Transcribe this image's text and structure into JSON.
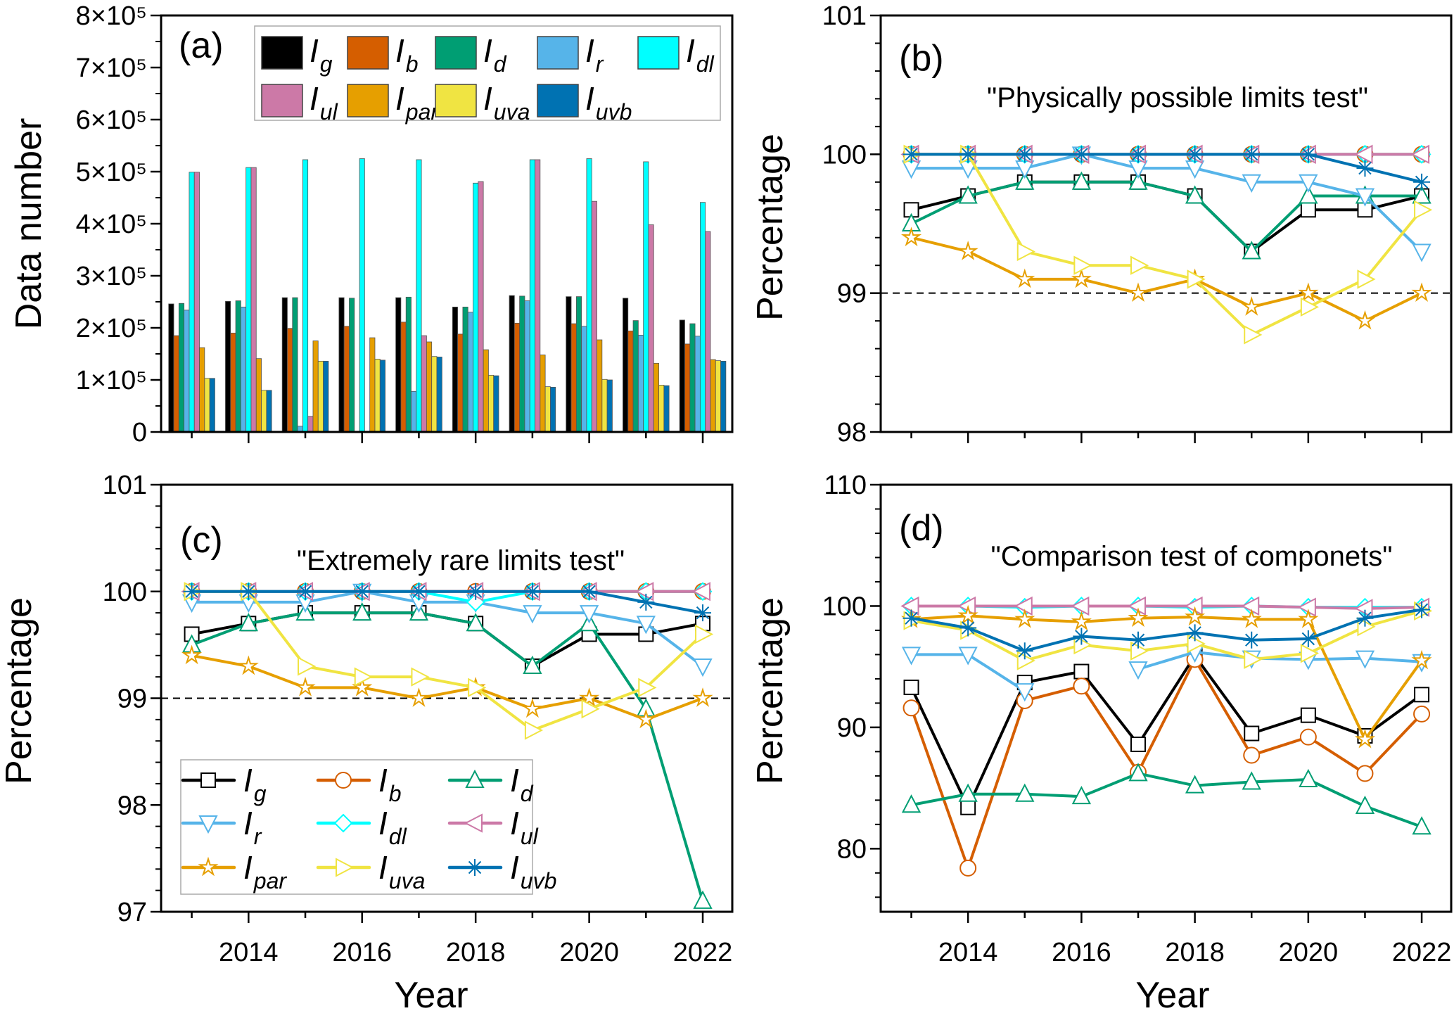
{
  "series_defs": [
    {
      "key": "Ig",
      "main": "I",
      "sub": "g",
      "color": "#000000",
      "marker": "square"
    },
    {
      "key": "Ib",
      "main": "I",
      "sub": "b",
      "color": "#D55E00",
      "marker": "circle"
    },
    {
      "key": "Id",
      "main": "I",
      "sub": "d",
      "color": "#009E73",
      "marker": "triangle-up"
    },
    {
      "key": "Ir",
      "main": "I",
      "sub": "r",
      "color": "#56B4E9",
      "marker": "triangle-down"
    },
    {
      "key": "Idl",
      "main": "I",
      "sub": "dl",
      "color": "#00FFFF",
      "marker": "diamond"
    },
    {
      "key": "Iul",
      "main": "I",
      "sub": "ul",
      "color": "#CC79A7",
      "marker": "triangle-left"
    },
    {
      "key": "Ipar",
      "main": "I",
      "sub": "par",
      "color": "#E69F00",
      "marker": "star"
    },
    {
      "key": "Iuva",
      "main": "I",
      "sub": "uva",
      "color": "#F0E442",
      "marker": "triangle-right"
    },
    {
      "key": "Iuvb",
      "main": "I",
      "sub": "uvb",
      "color": "#0072B2",
      "marker": "asterisk"
    }
  ],
  "chart_data": [
    {
      "panel": "(a)",
      "type": "bar",
      "title": "",
      "xlabel": "",
      "ylabel": "Data number",
      "ylim": [
        0,
        800000
      ],
      "xlim": [
        2012.46,
        2022.52
      ],
      "yticks": [
        0,
        100000,
        200000,
        300000,
        400000,
        500000,
        600000,
        700000,
        800000
      ],
      "ytick_labels": [
        "0",
        "1×10⁵",
        "2×10⁵",
        "3×10⁵",
        "4×10⁵",
        "5×10⁵",
        "6×10⁵",
        "7×10⁵",
        "8×10⁵"
      ],
      "yminor": 50000,
      "categories": [
        2013,
        2014,
        2015,
        2016,
        2017,
        2018,
        2019,
        2020,
        2021,
        2022
      ],
      "xtick_labels": [],
      "legend": "top",
      "series": {
        "Ig": [
          246000,
          251000,
          258000,
          258000,
          258000,
          240000,
          262000,
          260000,
          257000,
          215000
        ],
        "Ib": [
          185000,
          190000,
          199000,
          203000,
          211000,
          188000,
          209000,
          208000,
          194000,
          169000
        ],
        "Id": [
          247000,
          252000,
          258000,
          257000,
          259000,
          240000,
          261000,
          260000,
          214000,
          208000
        ],
        "Ir": [
          234000,
          240000,
          11000,
          0,
          78000,
          230000,
          252000,
          203000,
          186000,
          184000
        ],
        "Idl": [
          499000,
          508000,
          523000,
          525000,
          523000,
          478000,
          523000,
          525000,
          519000,
          441000
        ],
        "Iul": [
          499000,
          508000,
          30000,
          0,
          185000,
          481000,
          523000,
          443000,
          398000,
          385000
        ],
        "Ipar": [
          162000,
          141000,
          175000,
          181000,
          173000,
          158000,
          148000,
          177000,
          132000,
          139000
        ],
        "Iuva": [
          103000,
          80000,
          136000,
          140000,
          145000,
          109000,
          87000,
          101000,
          90000,
          137000
        ],
        "Iuvb": [
          103000,
          80000,
          136000,
          138000,
          144000,
          108000,
          86000,
          100000,
          89000,
          136000
        ]
      }
    },
    {
      "panel": "(b)",
      "type": "line",
      "title": "\"Physically possible limits test\"",
      "xlabel": "",
      "ylabel": "Percentage",
      "ylim": [
        98,
        101
      ],
      "xlim": [
        2012.46,
        2022.52
      ],
      "yticks": [
        98,
        99,
        100,
        101
      ],
      "ytick_labels": [
        "98",
        "99",
        "100",
        "101"
      ],
      "yminor": 0.2,
      "reference_line": 99,
      "x": [
        2013,
        2014,
        2015,
        2016,
        2017,
        2018,
        2019,
        2020,
        2021,
        2022
      ],
      "xtick_labels": [],
      "series": {
        "Ig": [
          99.6,
          99.7,
          99.8,
          99.8,
          99.8,
          99.7,
          99.3,
          99.6,
          99.6,
          99.7
        ],
        "Ib": [
          100,
          100,
          100,
          100,
          100,
          100,
          100,
          100,
          100,
          100
        ],
        "Id": [
          99.5,
          99.7,
          99.8,
          99.8,
          99.8,
          99.7,
          99.3,
          99.7,
          99.7,
          99.7
        ],
        "Ir": [
          99.9,
          99.9,
          99.9,
          100,
          99.9,
          99.9,
          99.8,
          99.8,
          99.7,
          99.3
        ],
        "Idl": [
          100,
          100,
          100,
          100,
          100,
          100,
          100,
          100,
          100,
          100
        ],
        "Iul": [
          100,
          100,
          100,
          100,
          100,
          100,
          100,
          100,
          100,
          100
        ],
        "Ipar": [
          99.4,
          99.3,
          99.1,
          99.1,
          99.0,
          99.1,
          98.9,
          99.0,
          98.8,
          99.0
        ],
        "Iuva": [
          100,
          100,
          99.3,
          99.2,
          99.2,
          99.1,
          98.7,
          98.9,
          99.1,
          99.6
        ],
        "Iuvb": [
          100,
          100,
          100,
          100,
          100,
          100,
          100,
          100,
          99.9,
          99.8
        ]
      }
    },
    {
      "panel": "(c)",
      "type": "line",
      "title": "\"Extremely rare limits test\"",
      "xlabel": "Year",
      "ylabel": "Percentage",
      "ylim": [
        97,
        101
      ],
      "xlim": [
        2012.46,
        2022.52
      ],
      "yticks": [
        97,
        98,
        99,
        100,
        101
      ],
      "ytick_labels": [
        "97",
        "98",
        "99",
        "100",
        "101"
      ],
      "yminor": 0.2,
      "reference_line": 99,
      "legend": "lower-left",
      "x": [
        2013,
        2014,
        2015,
        2016,
        2017,
        2018,
        2019,
        2020,
        2021,
        2022
      ],
      "xtick_labels": [
        "2014",
        "2016",
        "2018",
        "2020",
        "2022"
      ],
      "series": {
        "Ig": [
          99.6,
          99.7,
          99.8,
          99.8,
          99.8,
          99.7,
          99.3,
          99.6,
          99.6,
          99.7
        ],
        "Ib": [
          100,
          100,
          100,
          100,
          100,
          100,
          100,
          100,
          100,
          100
        ],
        "Id": [
          99.5,
          99.7,
          99.8,
          99.8,
          99.8,
          99.7,
          99.3,
          99.7,
          98.9,
          97.1
        ],
        "Ir": [
          99.9,
          99.9,
          99.9,
          100,
          99.9,
          99.9,
          99.8,
          99.8,
          99.7,
          99.3
        ],
        "Idl": [
          100,
          100,
          100,
          100,
          100,
          99.9,
          100,
          100,
          100,
          100
        ],
        "Iul": [
          100,
          100,
          100,
          100,
          100,
          100,
          100,
          100,
          100,
          100
        ],
        "Ipar": [
          99.4,
          99.3,
          99.1,
          99.1,
          99.0,
          99.1,
          98.9,
          99.0,
          98.8,
          99.0
        ],
        "Iuva": [
          100,
          100,
          99.3,
          99.2,
          99.2,
          99.1,
          98.7,
          98.9,
          99.1,
          99.6
        ],
        "Iuvb": [
          100,
          100,
          100,
          100,
          100,
          100,
          100,
          100,
          99.9,
          99.8
        ]
      }
    },
    {
      "panel": "(d)",
      "type": "line",
      "title": "\"Comparison test of componets\"",
      "xlabel": "Year",
      "ylabel": "Percentage",
      "ylim": [
        74.8,
        110
      ],
      "xlim": [
        2012.46,
        2022.52
      ],
      "yticks": [
        80,
        90,
        100,
        110
      ],
      "ytick_labels": [
        "80",
        "90",
        "100",
        "110"
      ],
      "yminor": 2,
      "x": [
        2013,
        2014,
        2015,
        2016,
        2017,
        2018,
        2019,
        2020,
        2021,
        2022
      ],
      "xtick_labels": [
        "2014",
        "2016",
        "2018",
        "2020",
        "2022"
      ],
      "series": {
        "Ig": [
          93.3,
          83.4,
          93.7,
          94.6,
          88.6,
          95.9,
          89.5,
          91.0,
          89.3,
          92.7
        ],
        "Ib": [
          91.6,
          78.4,
          92.2,
          93.4,
          86.3,
          95.6,
          87.7,
          89.2,
          86.2,
          91.1
        ],
        "Id": [
          83.6,
          84.5,
          84.5,
          84.3,
          86.2,
          85.2,
          85.5,
          85.7,
          83.5,
          81.8
        ],
        "Ir": [
          96.0,
          96.0,
          93.0,
          null,
          94.8,
          96.2,
          95.7,
          95.6,
          95.7,
          95.4
        ],
        "Idl": [
          100,
          100,
          99.9,
          100,
          100,
          99.9,
          100,
          99.9,
          99.9,
          99.9
        ],
        "Iul": [
          100,
          100,
          100,
          100,
          100,
          100,
          100,
          99.9,
          99.8,
          99.9
        ],
        "Ipar": [
          98.9,
          99.2,
          98.9,
          98.7,
          99.0,
          99.1,
          98.9,
          98.9,
          89.0,
          95.5
        ],
        "Iuva": [
          98.8,
          98.0,
          95.5,
          96.8,
          96.3,
          96.9,
          95.6,
          96.1,
          98.3,
          99.6
        ],
        "Iuvb": [
          99.0,
          98.2,
          96.3,
          97.5,
          97.2,
          97.8,
          97.2,
          97.3,
          99.0,
          99.7
        ]
      }
    }
  ]
}
